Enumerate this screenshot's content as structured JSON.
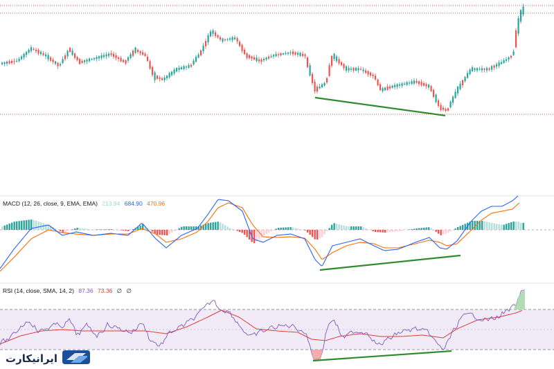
{
  "chart_data": [
    {
      "type": "candlestick",
      "panel": "price",
      "dotted_levels": [
        "top",
        "bottom"
      ],
      "annotation": {
        "type": "trendline",
        "color": "#2e8b2e",
        "direction": "down",
        "meaning": "bullish divergence vs indicators"
      }
    },
    {
      "type": "line",
      "panel": "MACD",
      "label": "MACD (12, 26, close, 9, EMA, EMA)",
      "values": {
        "histogram": "213.94",
        "macd": "684.90",
        "signal": "470.96"
      },
      "colors": {
        "histogram": "#9ed8cf",
        "macd": "#2962ff",
        "signal": "#ff6d00",
        "hist_up": "#26a69a",
        "hist_down": "#ef5350"
      },
      "annotation": {
        "type": "trendline",
        "color": "#2e8b2e",
        "direction": "up"
      }
    },
    {
      "type": "line",
      "panel": "RSI",
      "label": "RSI (14, close, SMA, 14, 2)",
      "values": {
        "rsi": "87.36",
        "ma": "73.36",
        "extra1": "∅",
        "extra2": "∅"
      },
      "colors": {
        "rsi": "#7e57c2",
        "ma": "#e53935",
        "band": "#ede7f6"
      },
      "bands": [
        30,
        70
      ],
      "annotation": {
        "type": "trendline",
        "color": "#2e8b2e",
        "direction": "up"
      }
    }
  ],
  "watermark": {
    "brand_text": "ایرانیکارت",
    "icon": "card-logo-icon"
  }
}
